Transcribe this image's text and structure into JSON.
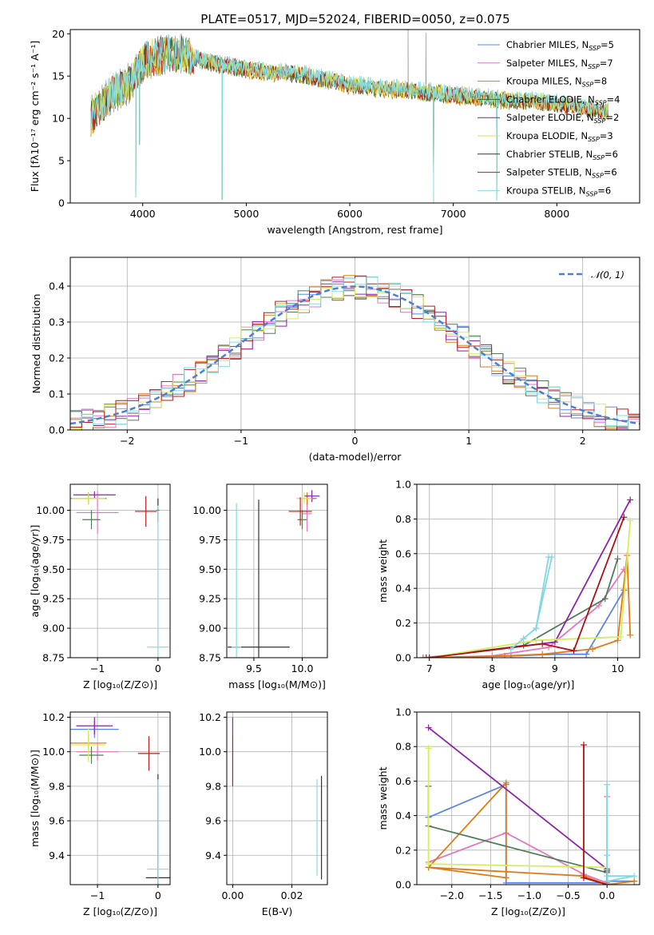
{
  "figure": {
    "title": "PLATE=0517, MJD=52024, FIBERID=0050, z=0.075"
  },
  "colors": {
    "chabrier_miles": "#5b86e5",
    "salpeter_miles": "#e377c2",
    "kroupa_miles": "#c88a00",
    "chabrier_elodie": "#2e6b3a",
    "salpeter_elodie": "#7b1fa2",
    "kroupa_elodie": "#d4e157",
    "chabrier_stelib": "#333333",
    "salpeter_stelib": "#b71c1c",
    "kroupa_stelib": "#80deea",
    "spectrum": "#808080",
    "gauss": "#4a7fd4",
    "weight_chabrier_miles": "#5b86e5",
    "weight_salpeter_miles": "#e377c2",
    "weight_kroupa_miles": "#e07b14",
    "weight_chabrier_elodie": "#4f7d57",
    "weight_salpeter_elodie": "#8e24aa",
    "weight_kroupa_elodie": "#d4ee5a",
    "weight_salpeter_stelib": "#b01010",
    "weight_kroupa_stelib": "#80d8e0"
  },
  "chart_data": [
    {
      "id": "spectrum",
      "type": "line",
      "xlabel": "wavelength [Angstrom, rest frame]",
      "ylabel": "Flux [fλ10⁻¹⁷ erg cm⁻² s⁻¹ A⁻¹]",
      "xlim": [
        3300,
        8800
      ],
      "ylim": [
        0,
        20.5
      ],
      "xticks": [
        4000,
        5000,
        6000,
        7000,
        8000
      ],
      "yticks": [
        0,
        5,
        10,
        15,
        20
      ],
      "grid": false,
      "legend_position": "top-right",
      "legend": [
        {
          "name": "Chabrier MILES, N_SSP=5",
          "color_key": "chabrier_miles"
        },
        {
          "name": "Salpeter MILES, N_SSP=7",
          "color_key": "salpeter_miles"
        },
        {
          "name": "Kroupa MILES, N_SSP=8",
          "color_key": "kroupa_miles"
        },
        {
          "name": "Chabrier ELODIE, N_SSP=4",
          "color_key": "chabrier_elodie"
        },
        {
          "name": "Salpeter ELODIE, N_SSP=2",
          "color_key": "salpeter_elodie"
        },
        {
          "name": "Kroupa ELODIE, N_SSP=3",
          "color_key": "kroupa_elodie"
        },
        {
          "name": "Chabrier STELIB, N_SSP=6",
          "color_key": "chabrier_stelib"
        },
        {
          "name": "Salpeter STELIB, N_SSP=6",
          "color_key": "salpeter_stelib"
        },
        {
          "name": "Kroupa STELIB, N_SSP=6",
          "color_key": "kroupa_stelib"
        }
      ],
      "continuum": {
        "x": [
          3500,
          3600,
          3700,
          3800,
          3900,
          4000,
          4100,
          4200,
          4300,
          4400,
          4600,
          4800,
          5000,
          5200,
          5500,
          5800,
          6000,
          6300,
          6600,
          7000,
          7400,
          7800,
          8200,
          8500
        ],
        "y": [
          10.2,
          11.5,
          13.0,
          13.5,
          14.5,
          16.5,
          17.2,
          17.5,
          17.8,
          17.5,
          16.8,
          16.3,
          15.8,
          15.5,
          15.3,
          14.5,
          14.0,
          13.6,
          13.3,
          12.8,
          12.3,
          12.0,
          11.4,
          10.8
        ]
      },
      "absorption_features": [
        {
          "x": 3933,
          "depth": 14.5
        },
        {
          "x": 3969,
          "depth": 9.0
        },
        {
          "x": 4768,
          "depth": 16.0
        },
        {
          "x": 6810,
          "depth": 13.0
        },
        {
          "x": 7420,
          "depth": 12.0
        }
      ],
      "emission_features": [
        {
          "x": 6563,
          "height": 8.0
        },
        {
          "x": 6735,
          "height": 7.0
        }
      ]
    },
    {
      "id": "residuals",
      "type": "histogram",
      "xlabel": "(data-model)/error",
      "ylabel": "Normed distribution",
      "xlim": [
        -2.5,
        2.5
      ],
      "ylim": [
        0,
        0.48
      ],
      "xticks": [
        -2,
        -1,
        0,
        1,
        2
      ],
      "yticks": [
        0.0,
        0.1,
        0.2,
        0.3,
        0.4
      ],
      "grid": true,
      "legend_position": "top-right",
      "gauss_label": "𝒩(0, 1)",
      "bin_width": 0.1
    },
    {
      "id": "age_vs_Z",
      "type": "errorbar",
      "xlabel": "Z [log₁₀(Z/Z⊙)]",
      "ylabel": "age  [log₁₀(age/yr)]",
      "xlim": [
        -1.45,
        0.2
      ],
      "ylim": [
        8.75,
        10.22
      ],
      "xticks": [
        -1,
        0
      ],
      "yticks": [
        8.75,
        9.0,
        9.25,
        9.5,
        9.75,
        10.0
      ],
      "grid": true,
      "points": [
        {
          "key": "chabrier_miles",
          "x": -1.15,
          "xerr": 0.3,
          "y": 10.1,
          "yerr": 0.05
        },
        {
          "key": "salpeter_miles",
          "x": -1.0,
          "xerr": 0.35,
          "y": 9.98,
          "yerr": 0.18
        },
        {
          "key": "kroupa_miles",
          "x": -1.15,
          "xerr": 0.3,
          "y": 10.1,
          "yerr": 0.05
        },
        {
          "key": "chabrier_elodie",
          "x": -1.1,
          "xerr": 0.15,
          "y": 9.92,
          "yerr": 0.08
        },
        {
          "key": "salpeter_elodie",
          "x": -1.05,
          "xerr": 0.35,
          "y": 10.13,
          "yerr": 0.03
        },
        {
          "key": "kroupa_elodie",
          "x": -1.15,
          "xerr": 0.28,
          "y": 10.1,
          "yerr": 0.05
        },
        {
          "key": "chabrier_stelib",
          "x": 0.0,
          "xerr": 0.02,
          "y": 10.0,
          "yerr": 0.1
        },
        {
          "key": "salpeter_stelib",
          "x": -0.2,
          "xerr": 0.18,
          "y": 9.99,
          "yerr": 0.13
        },
        {
          "key": "kroupa_stelib",
          "x": 0.0,
          "xerr": 0.18,
          "y": 8.84,
          "yerr": 1.2
        }
      ]
    },
    {
      "id": "age_vs_mass",
      "type": "errorbar",
      "xlabel": "mass [log₁₀(M/M⊙)]",
      "ylabel": "",
      "xlim": [
        9.22,
        10.26
      ],
      "ylim": [
        8.75,
        10.22
      ],
      "xticks": [
        9.5,
        10.0
      ],
      "yticks": [
        8.75,
        9.0,
        9.25,
        9.5,
        9.75,
        10.0
      ],
      "grid": true,
      "points": [
        {
          "key": "chabrier_miles",
          "x": 10.05,
          "xerr": 0.1,
          "y": 10.1,
          "yerr": 0.05
        },
        {
          "key": "salpeter_miles",
          "x": 10.05,
          "xerr": 0.05,
          "y": 9.97,
          "yerr": 0.15
        },
        {
          "key": "kroupa_miles",
          "x": 10.05,
          "xerr": 0.08,
          "y": 10.1,
          "yerr": 0.05
        },
        {
          "key": "chabrier_elodie",
          "x": 10.0,
          "xerr": 0.05,
          "y": 9.92,
          "yerr": 0.08
        },
        {
          "key": "salpeter_elodie",
          "x": 10.1,
          "xerr": 0.08,
          "y": 10.12,
          "yerr": 0.05
        },
        {
          "key": "kroupa_elodie",
          "x": 10.02,
          "xerr": 0.08,
          "y": 10.1,
          "yerr": 0.05
        },
        {
          "key": "chabrier_stelib",
          "x": 9.55,
          "xerr": 0.32,
          "y": 8.84,
          "yerr": 1.25
        },
        {
          "key": "salpeter_stelib",
          "x": 9.98,
          "xerr": 0.12,
          "y": 9.99,
          "yerr": 0.12
        },
        {
          "key": "kroupa_stelib",
          "x": 9.32,
          "xerr": 0.05,
          "y": 8.84,
          "yerr": 1.22
        }
      ]
    },
    {
      "id": "weight_vs_age",
      "type": "line",
      "xlabel": "age  [log₁₀(age/yr)]",
      "ylabel": "mass weight",
      "xlim": [
        6.8,
        10.35
      ],
      "ylim": [
        0,
        1.0
      ],
      "xticks": [
        7,
        8,
        9,
        10
      ],
      "yticks": [
        0.0,
        0.2,
        0.4,
        0.6,
        0.8,
        1.0
      ],
      "grid": true,
      "series": [
        {
          "key": "weight_chabrier_miles",
          "x": [
            6.9,
            8.3,
            9.0,
            9.5,
            10.1
          ],
          "y": [
            0.0,
            0.01,
            0.02,
            0.02,
            0.39
          ]
        },
        {
          "key": "weight_salpeter_miles",
          "x": [
            7.0,
            8.0,
            8.9,
            9.7,
            10.1
          ],
          "y": [
            0.0,
            0.01,
            0.06,
            0.3,
            0.51
          ]
        },
        {
          "key": "weight_kroupa_miles",
          "x": [
            6.9,
            8.2,
            8.8,
            9.6,
            10.0,
            10.15,
            10.2
          ],
          "y": [
            0.0,
            0.01,
            0.02,
            0.05,
            0.1,
            0.59,
            0.13
          ]
        },
        {
          "key": "weight_chabrier_elodie",
          "x": [
            6.95,
            8.5,
            9.8,
            10.0
          ],
          "y": [
            0.0,
            0.07,
            0.34,
            0.57
          ]
        },
        {
          "key": "weight_salpeter_elodie",
          "x": [
            6.95,
            9.0,
            10.2
          ],
          "y": [
            0.0,
            0.09,
            0.91
          ]
        },
        {
          "key": "weight_kroupa_elodie",
          "x": [
            7.0,
            8.7,
            10.05,
            10.2
          ],
          "y": [
            0.0,
            0.1,
            0.12,
            0.79
          ]
        },
        {
          "key": "weight_salpeter_stelib",
          "x": [
            7.0,
            8.8,
            9.3,
            10.1
          ],
          "y": [
            0.0,
            0.08,
            0.04,
            0.81
          ]
        },
        {
          "key": "weight_kroupa_stelib",
          "x": [
            8.3,
            8.5,
            8.7,
            8.9,
            8.95,
            8.7,
            8.5,
            8.3
          ],
          "y": [
            0.05,
            0.11,
            0.17,
            0.58,
            0.58,
            0.17,
            0.11,
            0.05
          ]
        }
      ]
    },
    {
      "id": "mass_vs_Z",
      "type": "errorbar",
      "xlabel": "Z [log₁₀(Z/Z⊙)]",
      "ylabel": "mass [log₁₀(M/M⊙)]",
      "xlim": [
        -1.45,
        0.2
      ],
      "ylim": [
        9.23,
        10.23
      ],
      "xticks": [
        -1,
        0
      ],
      "yticks": [
        9.4,
        9.6,
        9.8,
        10.0,
        10.2
      ],
      "grid": true,
      "points": [
        {
          "key": "chabrier_miles",
          "x": -1.05,
          "xerr": 0.4,
          "y": 10.13,
          "yerr": 0.05
        },
        {
          "key": "salpeter_miles",
          "x": -1.0,
          "xerr": 0.35,
          "y": 10.0,
          "yerr": 0.05
        },
        {
          "key": "kroupa_miles",
          "x": -1.15,
          "xerr": 0.3,
          "y": 10.05,
          "yerr": 0.05
        },
        {
          "key": "chabrier_elodie",
          "x": -1.1,
          "xerr": 0.2,
          "y": 9.98,
          "yerr": 0.05
        },
        {
          "key": "salpeter_elodie",
          "x": -1.05,
          "xerr": 0.3,
          "y": 10.15,
          "yerr": 0.05
        },
        {
          "key": "kroupa_elodie",
          "x": -1.15,
          "xerr": 0.28,
          "y": 10.04,
          "yerr": 0.1
        },
        {
          "key": "chabrier_stelib",
          "x": 0.0,
          "xerr": 0.2,
          "y": 9.27,
          "yerr": 0.6
        },
        {
          "key": "salpeter_stelib",
          "x": -0.15,
          "xerr": 0.18,
          "y": 9.99,
          "yerr": 0.1
        },
        {
          "key": "kroupa_stelib",
          "x": 0.0,
          "xerr": 0.18,
          "y": 9.32,
          "yerr": 0.52
        }
      ]
    },
    {
      "id": "mass_vs_ebv",
      "type": "errorbar",
      "xlabel": "E(B-V)",
      "ylabel": "",
      "xlim": [
        -0.002,
        0.032
      ],
      "ylim": [
        9.23,
        10.23
      ],
      "xticks": [
        0.0,
        0.02
      ],
      "yticks": [
        9.4,
        9.6,
        9.8,
        10.0,
        10.2
      ],
      "grid": true,
      "points": [
        {
          "key": "salpeter_elodie",
          "x": 0.0,
          "xerr": 0.0,
          "y": 10.15,
          "yerr": 0.05
        },
        {
          "key": "salpeter_stelib",
          "x": 0.0,
          "xerr": 0.0,
          "y": 9.95,
          "yerr": 0.15
        },
        {
          "key": "kroupa_stelib",
          "x": 0.0285,
          "xerr": 0.0,
          "y": 9.56,
          "yerr": 0.28
        },
        {
          "key": "chabrier_stelib",
          "x": 0.03,
          "xerr": 0.0,
          "y": 9.56,
          "yerr": 0.3
        }
      ]
    },
    {
      "id": "weight_vs_Z",
      "type": "line",
      "xlabel": "Z [log₁₀(Z/Z⊙)]",
      "ylabel": "mass weight",
      "xlim": [
        -2.45,
        0.42
      ],
      "ylim": [
        0,
        1.0
      ],
      "xticks": [
        -2.0,
        -1.5,
        -1.0,
        -0.5,
        0.0
      ],
      "yticks": [
        0.0,
        0.2,
        0.4,
        0.6,
        0.8,
        1.0
      ],
      "grid": true,
      "series": [
        {
          "key": "weight_chabrier_miles",
          "x": [
            -2.3,
            -1.3,
            -1.3,
            0.0,
            0.0,
            0.35
          ],
          "y": [
            0.39,
            0.58,
            0.01,
            0.01,
            0.02,
            0.02
          ]
        },
        {
          "key": "weight_salpeter_miles",
          "x": [
            -2.3,
            -1.3,
            -0.3,
            0.0,
            0.0
          ],
          "y": [
            0.13,
            0.3,
            0.06,
            0.01,
            0.51
          ]
        },
        {
          "key": "weight_kroupa_miles",
          "x": [
            -2.3,
            -1.3,
            -1.3,
            -2.3,
            -0.3,
            0.0,
            0.35
          ],
          "y": [
            0.1,
            0.04,
            0.59,
            0.1,
            0.05,
            0.0,
            0.02
          ]
        },
        {
          "key": "weight_chabrier_elodie",
          "x": [
            -2.3,
            -2.3,
            0.0,
            0.0
          ],
          "y": [
            0.57,
            0.34,
            0.07,
            0.0
          ]
        },
        {
          "key": "weight_salpeter_elodie",
          "x": [
            -2.3,
            0.0
          ],
          "y": [
            0.91,
            0.09
          ]
        },
        {
          "key": "weight_kroupa_elodie",
          "x": [
            -2.3,
            -2.3,
            0.0
          ],
          "y": [
            0.79,
            0.12,
            0.1
          ]
        },
        {
          "key": "weight_salpeter_stelib",
          "x": [
            -0.3,
            -0.3,
            0.0,
            0.0
          ],
          "y": [
            0.81,
            0.04,
            0.0,
            0.08
          ]
        },
        {
          "key": "weight_kroupa_stelib",
          "x": [
            0.0,
            0.0,
            0.35,
            0.0,
            0.0
          ],
          "y": [
            0.58,
            0.05,
            0.05,
            0.02,
            0.17
          ]
        }
      ]
    }
  ]
}
